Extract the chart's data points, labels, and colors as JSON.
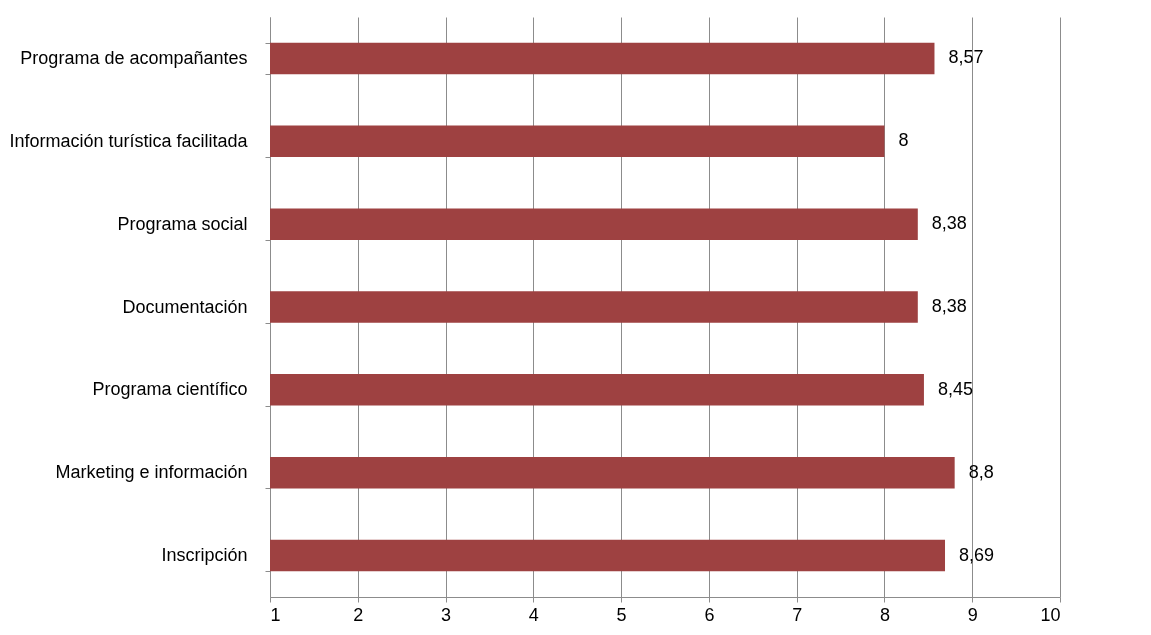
{
  "chart_data": {
    "type": "bar",
    "orientation": "horizontal",
    "categories": [
      "Programa de acompañantes",
      "Información turística facilitada",
      "Programa social",
      "Documentación",
      "Programa científico",
      "Marketing e información",
      "Inscripción"
    ],
    "values": [
      8.57,
      8,
      8.38,
      8.38,
      8.45,
      8.8,
      8.69
    ],
    "value_labels": [
      "8,57",
      "8",
      "8,38",
      "8,38",
      "8,45",
      "8,8",
      "8,69"
    ],
    "color": "#9e4141",
    "xlim": [
      1,
      10
    ],
    "xticks": [
      1,
      2,
      3,
      4,
      5,
      6,
      7,
      8,
      9,
      10
    ],
    "grid": "x"
  }
}
